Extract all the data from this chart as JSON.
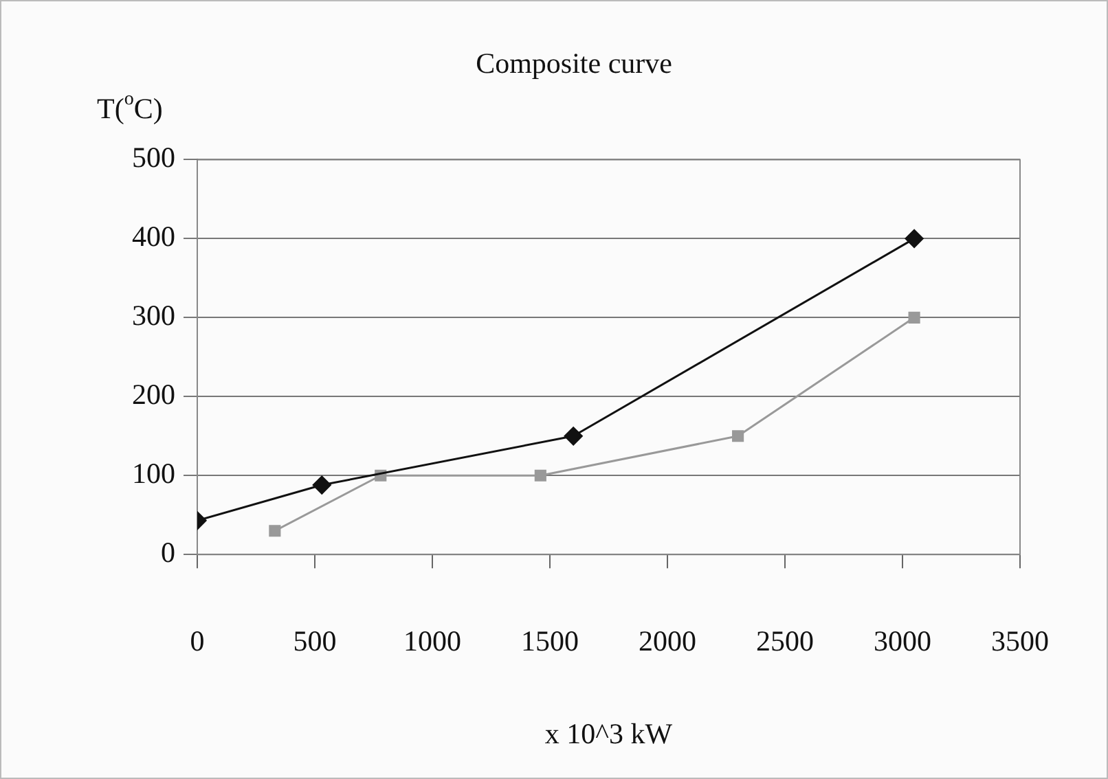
{
  "chart_data": {
    "type": "scatter",
    "title": "Composite curve",
    "xlabel": "x 10^3 kW",
    "ylabel": "T($^{o}$C)",
    "series": [
      {
        "type": "line",
        "color": "#111111",
        "marker": "diamond",
        "x": [
          0,
          530,
          1600,
          3050
        ],
        "values": [
          43,
          88,
          150,
          400
        ]
      },
      {
        "type": "line",
        "color": "#999999",
        "marker": "square",
        "x": [
          330,
          780,
          1460,
          2300,
          3050
        ],
        "values": [
          30,
          100,
          100,
          150,
          300
        ]
      }
    ],
    "xlim": [
      0,
      3500
    ],
    "xticks": [
      0,
      500,
      1000,
      1500,
      2000,
      2500,
      3000,
      3500
    ],
    "ylim": [
      0,
      500
    ],
    "yticks": [
      0,
      100,
      200,
      300,
      400,
      500
    ],
    "grid": "y",
    "legend": false
  }
}
